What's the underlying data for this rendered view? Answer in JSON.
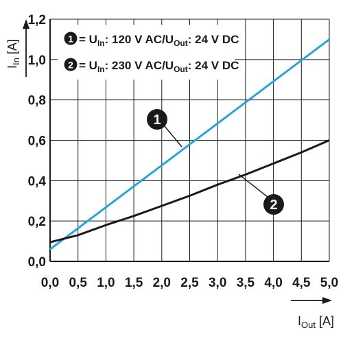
{
  "chart_data": {
    "type": "line",
    "x": [
      0,
      5
    ],
    "xlim": [
      0,
      5
    ],
    "ylim": [
      0,
      1.2
    ],
    "x_ticks": [
      "0,0",
      "0,5",
      "1,0",
      "1,5",
      "2,0",
      "2,5",
      "3,0",
      "3,5",
      "4,0",
      "4,5",
      "5,0"
    ],
    "y_ticks": [
      "0,0",
      "0,2",
      "0,4",
      "0,6",
      "0,8",
      "1,0",
      "1,2"
    ],
    "grid": true,
    "xlabel": {
      "main": "I",
      "sub": "Out",
      "unit": " [A]"
    },
    "ylabel": {
      "main": "I",
      "sub": "In",
      "unit": " [A]"
    },
    "series": [
      {
        "marker": "1",
        "color": "#2aa3d6",
        "points": [
          [
            0,
            0.06
          ],
          [
            5,
            1.1
          ]
        ]
      },
      {
        "marker": "2",
        "color": "#1a1a1a",
        "points": [
          [
            0,
            0.095
          ],
          [
            0.5,
            0.13
          ],
          [
            1.0,
            0.18
          ],
          [
            1.5,
            0.225
          ],
          [
            2.0,
            0.275
          ],
          [
            2.5,
            0.325
          ],
          [
            3.0,
            0.38
          ],
          [
            3.5,
            0.43
          ],
          [
            4.0,
            0.485
          ],
          [
            4.5,
            0.54
          ],
          [
            5.0,
            0.6
          ]
        ]
      }
    ],
    "legend": {
      "position": "top-left",
      "entries": [
        {
          "marker": "1",
          "eq": " = U",
          "sub1": "In",
          "mid": ": 120 V AC/U",
          "sub2": "Out",
          "end": ": 24 V DC"
        },
        {
          "marker": "2",
          "eq": " = U",
          "sub1": "In",
          "mid": ": 230 V AC/U",
          "sub2": "Out",
          "end": ": 24 V DC"
        }
      ]
    }
  }
}
